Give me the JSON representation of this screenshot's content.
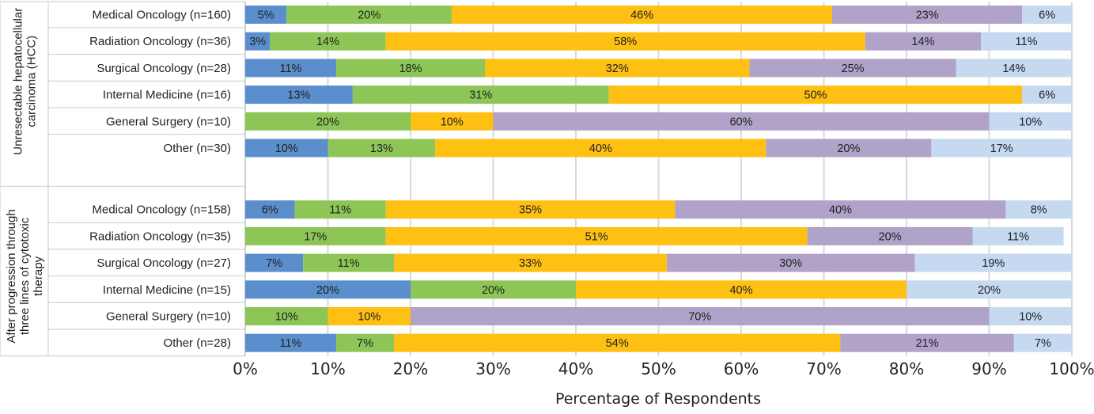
{
  "chart_data": {
    "type": "bar",
    "orientation": "horizontal",
    "stacked": true,
    "title": "",
    "xlabel": "Percentage of Respondents",
    "ylabel": "",
    "xlim": [
      0,
      100
    ],
    "xticks": [
      "0%",
      "10%",
      "20%",
      "30%",
      "40%",
      "50%",
      "60%",
      "70%",
      "80%",
      "90%",
      "100%"
    ],
    "grid": "vertical",
    "legend": "none",
    "series_colors": [
      "#5B8ECC",
      "#8DC656",
      "#FDC013",
      "#B0A2C8",
      "#C5D9F0"
    ],
    "groups": [
      {
        "label": "Unresectable hepatocellular carcinoma (HCC)",
        "label_lines": [
          "Unresectable hepatocellular",
          "carcinoma (HCC)"
        ],
        "bars": [
          {
            "category": "Medical Oncology (n=160)",
            "values": [
              5,
              20,
              46,
              23,
              6
            ],
            "labels": [
              "5%",
              "20%",
              "46%",
              "23%",
              "6%"
            ]
          },
          {
            "category": "Radiation Oncology (n=36)",
            "values": [
              3,
              14,
              58,
              14,
              11
            ],
            "labels": [
              "3%",
              "14%",
              "58%",
              "14%",
              "11%"
            ]
          },
          {
            "category": "Surgical Oncology (n=28)",
            "values": [
              11,
              18,
              32,
              25,
              14
            ],
            "labels": [
              "11%",
              "18%",
              "32%",
              "25%",
              "14%"
            ]
          },
          {
            "category": "Internal Medicine (n=16)",
            "values": [
              13,
              31,
              50,
              0,
              6
            ],
            "labels": [
              "13%",
              "31%",
              "50%",
              "",
              "6%"
            ]
          },
          {
            "category": "General Surgery (n=10)",
            "values": [
              0,
              20,
              10,
              60,
              10
            ],
            "labels": [
              "",
              "20%",
              "10%",
              "60%",
              "10%"
            ]
          },
          {
            "category": "Other (n=30)",
            "values": [
              10,
              13,
              40,
              20,
              17
            ],
            "labels": [
              "10%",
              "13%",
              "40%",
              "20%",
              "17%"
            ]
          }
        ]
      },
      {
        "label": "After progression through three lines of cytotoxic therapy",
        "label_lines": [
          "After progression through",
          "three lines of cytotoxic",
          "therapy"
        ],
        "bars": [
          {
            "category": "Medical Oncology (n=158)",
            "values": [
              6,
              11,
              35,
              40,
              8
            ],
            "labels": [
              "6%",
              "11%",
              "35%",
              "40%",
              "8%"
            ]
          },
          {
            "category": "Radiation Oncology (n=35)",
            "values": [
              0,
              17,
              51,
              20,
              11
            ],
            "labels": [
              "",
              "17%",
              "51%",
              "20%",
              "11%"
            ]
          },
          {
            "category": "Surgical Oncology (n=27)",
            "values": [
              7,
              11,
              33,
              30,
              19
            ],
            "labels": [
              "7%",
              "11%",
              "33%",
              "30%",
              "19%"
            ]
          },
          {
            "category": "Internal Medicine (n=15)",
            "values": [
              20,
              20,
              40,
              0,
              20
            ],
            "labels": [
              "20%",
              "20%",
              "40%",
              "",
              "20%"
            ]
          },
          {
            "category": "General Surgery (n=10)",
            "values": [
              0,
              10,
              10,
              70,
              10
            ],
            "labels": [
              "",
              "10%",
              "10%",
              "70%",
              "10%"
            ]
          },
          {
            "category": "Other (n=28)",
            "values": [
              11,
              7,
              54,
              21,
              7
            ],
            "labels": [
              "11%",
              "7%",
              "54%",
              "21%",
              "7%"
            ]
          }
        ]
      }
    ]
  }
}
